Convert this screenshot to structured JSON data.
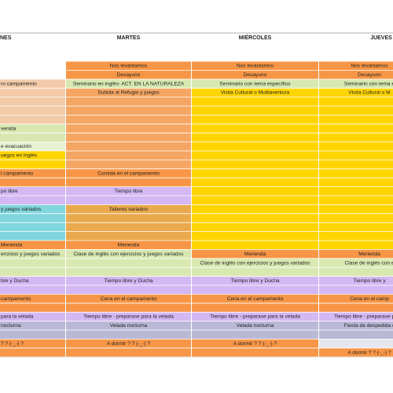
{
  "columns": [
    {
      "header": "NES",
      "entries": [
        "ro campamento",
        "venida",
        "e evacuación",
        "uegos en inglés",
        "l campamento",
        "po libre",
        " y juegos variados",
        "Merienda",
        "ercicios y juegos variados",
        "bre y Ducha",
        "campamento",
        " para la velada",
        "nocturna",
        "? ? (-_-) ?"
      ]
    },
    {
      "header": "MARTES",
      "entries": [
        "Nos levantamos",
        "Desayuno",
        "Seminario en inglés- ACT. EN LA NATURALEZA",
        "Subida al Refugio y juegos",
        "Comida en el campamento",
        "Tiempo libre",
        "Talleres variados",
        "Merienda",
        "Clase de inglés con ejercicios y juegos variados",
        "Tiempo libre y Ducha",
        "Cena en el campamento",
        "Tiempo libre - preparase para la velada",
        "Velada nocturna",
        "A dormir ? ? (-_-) ?"
      ]
    },
    {
      "header": "MIÉRCOLES",
      "entries": [
        "Nos levantamos",
        "Desayuno",
        "Seminario con tema específico",
        "Visita Cultural o Multiaventura",
        "Merienda",
        "Clase de inglés con ejercicios y juegos variados",
        "Tiempo libre y Ducha",
        "Cena en el campamento",
        "Tiempo libre - preparase para la velada",
        "Velada nocturna",
        "A dormir ? ? (-_-) ?"
      ]
    },
    {
      "header": "JUEVES",
      "entries": [
        "Nos levantamos",
        "Desayuno",
        "Seminario con tema e",
        "Visita Cultural o M",
        "Merienda",
        "Clase de inglés con e",
        "Tiempo libre y",
        "Cena en el camp",
        "Tiempo libre - preparase para l",
        "Fiesta de despedida c",
        "A dormir ? ? (-_-) ?"
      ]
    }
  ]
}
